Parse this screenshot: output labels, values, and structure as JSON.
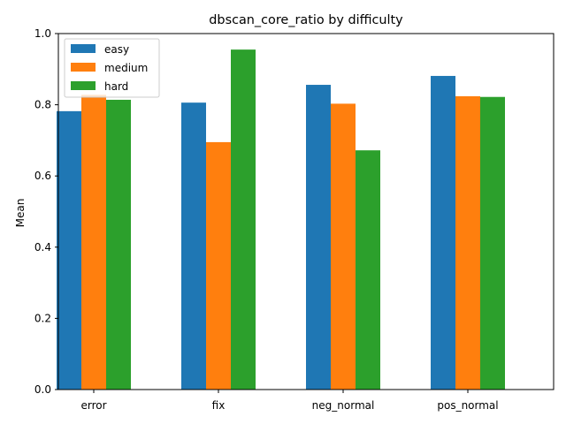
{
  "chart_data": {
    "type": "bar",
    "title": "dbscan_core_ratio by difficulty",
    "xlabel": "",
    "ylabel": "Mean",
    "categories": [
      "error",
      "fix",
      "neg_normal",
      "pos_normal"
    ],
    "series": [
      {
        "name": "easy",
        "color": "#1f77b4",
        "values": [
          0.782,
          0.806,
          0.856,
          0.881
        ]
      },
      {
        "name": "medium",
        "color": "#ff7f0e",
        "values": [
          0.828,
          0.695,
          0.803,
          0.824
        ]
      },
      {
        "name": "hard",
        "color": "#2ca02c",
        "values": [
          0.814,
          0.955,
          0.672,
          0.822
        ]
      }
    ],
    "ylim": [
      0,
      1.0
    ],
    "yticks": [
      "0.0",
      "0.2",
      "0.4",
      "0.6",
      "0.8",
      "1.0"
    ],
    "grid": false,
    "legend_position": "top-left"
  }
}
